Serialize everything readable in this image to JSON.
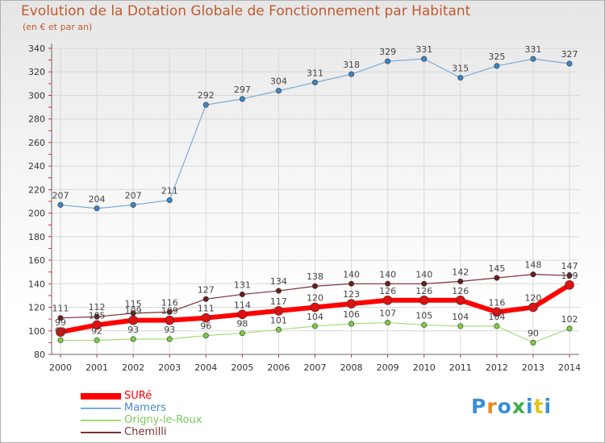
{
  "title": "Evolution de la Dotation Globale de Fonctionnement par Habitant",
  "subtitle": "(en € et par an)",
  "logo": {
    "letters": [
      "P",
      "r",
      "o",
      "x",
      "i",
      "t",
      "i"
    ],
    "colors": [
      "#3a8fd8",
      "#e8891d",
      "#3a8fd8",
      "#3fae49",
      "#3a8fd8",
      "#e8c21d",
      "#3a8fd8"
    ]
  },
  "chart_data": {
    "type": "line",
    "x": [
      "2000",
      "2001",
      "2002",
      "2003",
      "2004",
      "2005",
      "2006",
      "2007",
      "2008",
      "2009",
      "2010",
      "2011",
      "2012",
      "2013",
      "2014"
    ],
    "ylim": [
      80,
      340
    ],
    "yticks": [
      "80",
      "100",
      "120",
      "140",
      "160",
      "180",
      "200",
      "220",
      "240",
      "260",
      "280",
      "300",
      "320",
      "340"
    ],
    "series": [
      {
        "name": "SURé",
        "color": "#ff0000",
        "marker": "#e01010",
        "width": 6,
        "values": [
          99,
          105,
          109,
          109,
          111,
          114,
          117,
          120,
          123,
          126,
          126,
          126,
          116,
          120,
          139
        ]
      },
      {
        "name": "Mamers",
        "color": "#7aaad8",
        "marker": "#3b86c6",
        "width": 1.2,
        "values": [
          207,
          204,
          207,
          211,
          292,
          297,
          304,
          311,
          318,
          329,
          331,
          315,
          325,
          331,
          327
        ]
      },
      {
        "name": "Origny-le-Roux",
        "color": "#a6dc7c",
        "marker": "#7ccc44",
        "width": 1.2,
        "values": [
          92,
          92,
          93,
          93,
          96,
          98,
          101,
          104,
          106,
          107,
          105,
          104,
          104,
          90,
          102
        ]
      },
      {
        "name": "Chemilli",
        "color": "#7a3030",
        "marker": "#6a1e1e",
        "width": 1.2,
        "values": [
          111,
          112,
          115,
          116,
          127,
          131,
          134,
          138,
          140,
          140,
          140,
          142,
          145,
          148,
          147
        ]
      }
    ],
    "legend_position": "bottom-left"
  }
}
